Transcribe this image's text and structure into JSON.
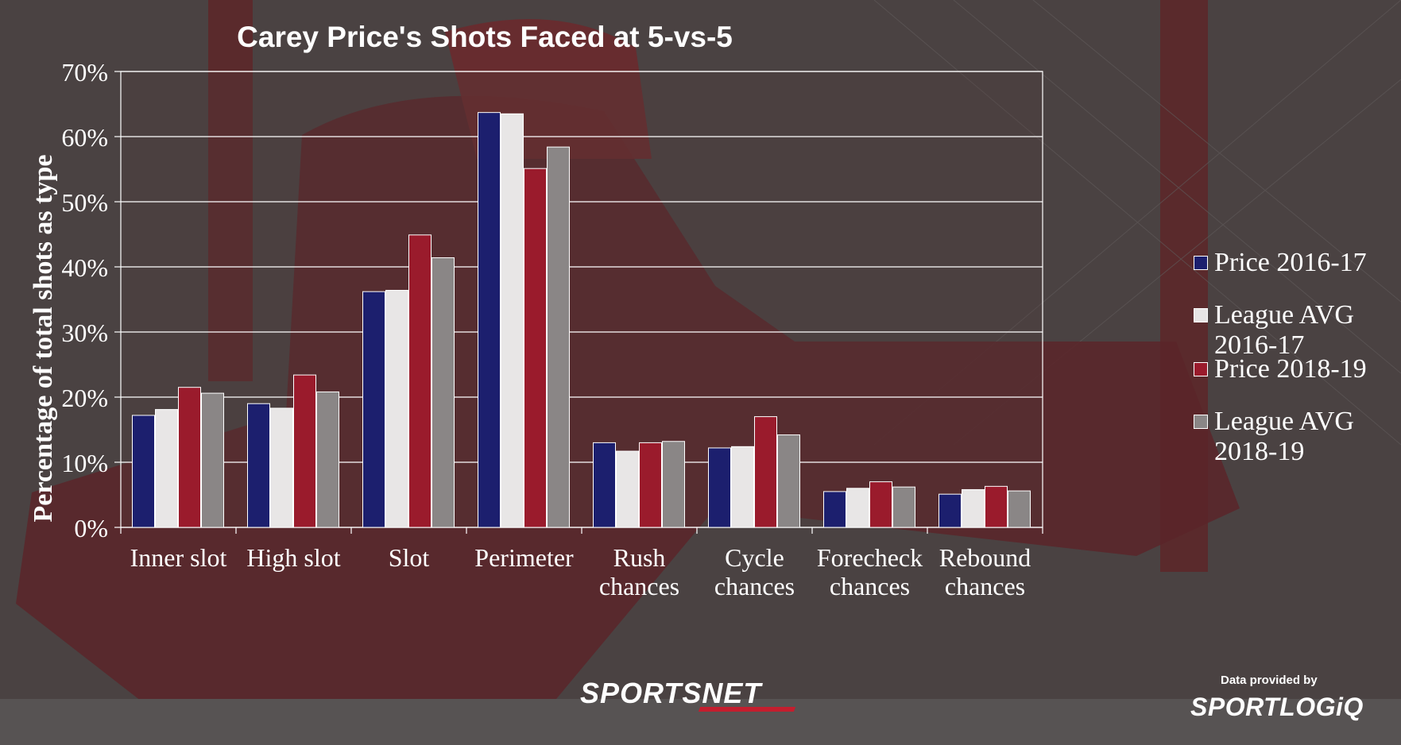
{
  "chart_data": {
    "type": "bar",
    "title": "Carey Price's Shots Faced at 5-vs-5",
    "ylabel": "Percentage of total shots as type",
    "xlabel": "",
    "ylim": [
      0,
      70
    ],
    "yticks": [
      "0%",
      "10%",
      "20%",
      "30%",
      "40%",
      "50%",
      "60%",
      "70%"
    ],
    "grid": true,
    "legend_position": "right",
    "categories": [
      [
        "Inner slot"
      ],
      [
        "High slot"
      ],
      [
        "Slot"
      ],
      [
        "Perimeter"
      ],
      [
        "Rush",
        "chances"
      ],
      [
        "Cycle",
        "chances"
      ],
      [
        "Forecheck",
        "chances"
      ],
      [
        "Rebound",
        "chances"
      ]
    ],
    "series": [
      {
        "name": [
          "Price 2016-17"
        ],
        "color": "#1c1f6e",
        "values": [
          17.2,
          19.0,
          36.2,
          63.7,
          13.0,
          12.2,
          5.5,
          5.1
        ]
      },
      {
        "name": [
          "League AVG",
          "2016-17"
        ],
        "color": "#e8e6e6",
        "values": [
          18.1,
          18.3,
          36.4,
          63.5,
          11.7,
          12.4,
          6.0,
          5.8
        ]
      },
      {
        "name": [
          "Price 2018-19"
        ],
        "color": "#9a1b2c",
        "values": [
          21.5,
          23.4,
          44.9,
          55.1,
          13.0,
          17.0,
          7.0,
          6.3
        ]
      },
      {
        "name": [
          "League AVG",
          "2018-19"
        ],
        "color": "#8a8686",
        "values": [
          20.6,
          20.8,
          41.4,
          58.4,
          13.2,
          14.2,
          6.2,
          5.6
        ]
      }
    ]
  },
  "branding": {
    "sportsnet_logo": "SPORTSNET",
    "credit": "Data provided by",
    "sportlogiq_logo": "SPORTLOGiQ"
  }
}
